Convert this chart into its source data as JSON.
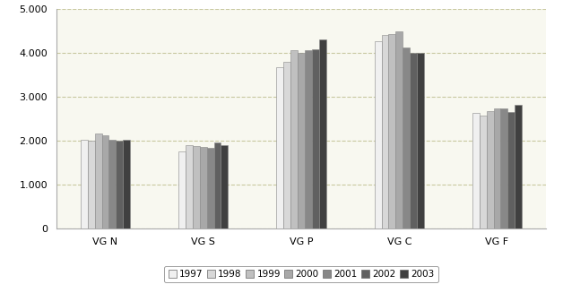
{
  "categories": [
    "VG N",
    "VG S",
    "VG P",
    "VG C",
    "VG F"
  ],
  "years": [
    "1997",
    "1998",
    "1999",
    "2000",
    "2001",
    "2002",
    "2003"
  ],
  "values": {
    "VG N": [
      2010,
      2000,
      2160,
      2130,
      2010,
      1990,
      2020
    ],
    "VG S": [
      1750,
      1890,
      1880,
      1860,
      1840,
      1960,
      1890
    ],
    "VG P": [
      3680,
      3800,
      4050,
      4000,
      4060,
      4070,
      4300
    ],
    "VG C": [
      4270,
      4400,
      4430,
      4490,
      4120,
      3990,
      4000
    ],
    "VG F": [
      2630,
      2560,
      2680,
      2730,
      2740,
      2660,
      2810
    ]
  },
  "bar_colors": [
    "#f0f0f0",
    "#d8d8d8",
    "#c0c0c0",
    "#a8a8a8",
    "#888888",
    "#606060",
    "#404040"
  ],
  "bar_edge_color": "#888888",
  "ylim": [
    0,
    5000
  ],
  "yticks": [
    0,
    1000,
    2000,
    3000,
    4000,
    5000
  ],
  "ytick_labels": [
    "0",
    "1.000",
    "2.000",
    "3.000",
    "4.000",
    "5.000"
  ],
  "grid_color": "#c8c8a0",
  "background_color": "#ffffff",
  "plot_bg_color": "#f8f8f0",
  "figsize": [
    6.28,
    3.27
  ],
  "dpi": 100
}
